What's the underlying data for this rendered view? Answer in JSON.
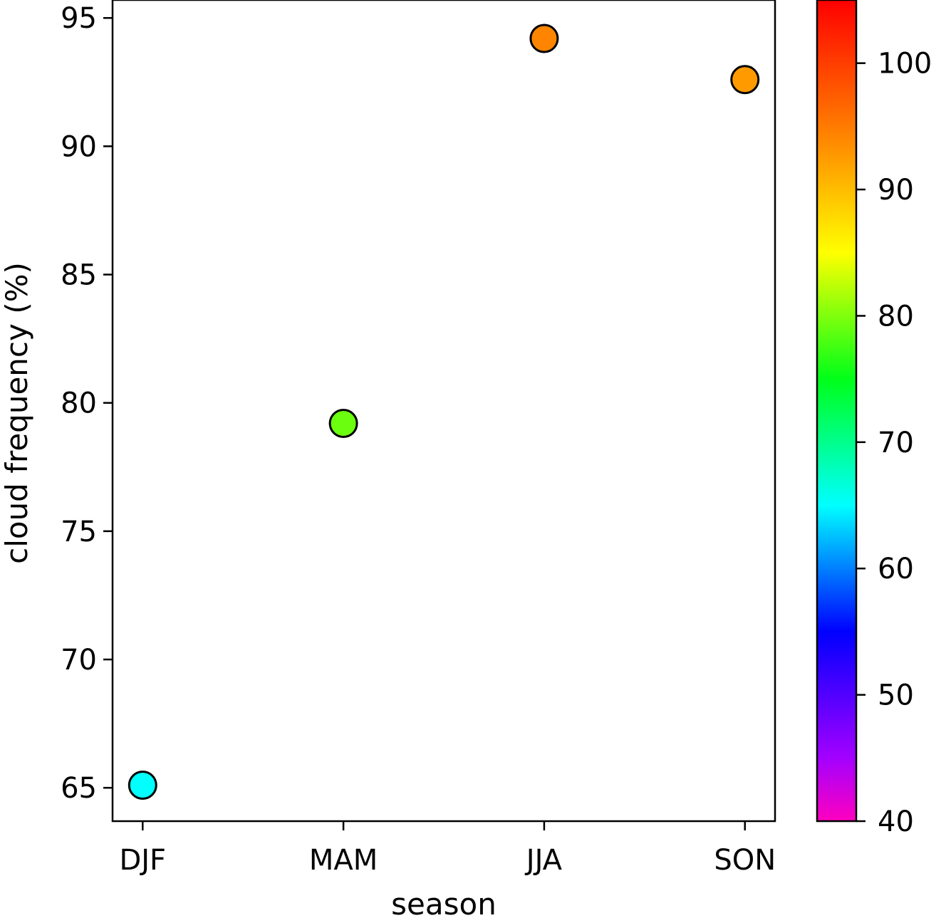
{
  "chart_data": {
    "type": "scatter",
    "title": "",
    "xlabel": "season",
    "ylabel": "cloud frequency (%)",
    "categories": [
      "DJF",
      "MAM",
      "JJA",
      "SON"
    ],
    "values": [
      65.1,
      79.2,
      94.2,
      92.6
    ],
    "ylim": [
      63.7,
      95.7
    ],
    "yticks": [
      65,
      70,
      75,
      80,
      85,
      90,
      95
    ],
    "grid": false,
    "marker_edge_color": "#000000",
    "colorbar": {
      "colormap": "gist_rainbow",
      "range": [
        40,
        105
      ],
      "ticks": [
        40,
        50,
        60,
        70,
        80,
        90,
        100
      ]
    }
  }
}
